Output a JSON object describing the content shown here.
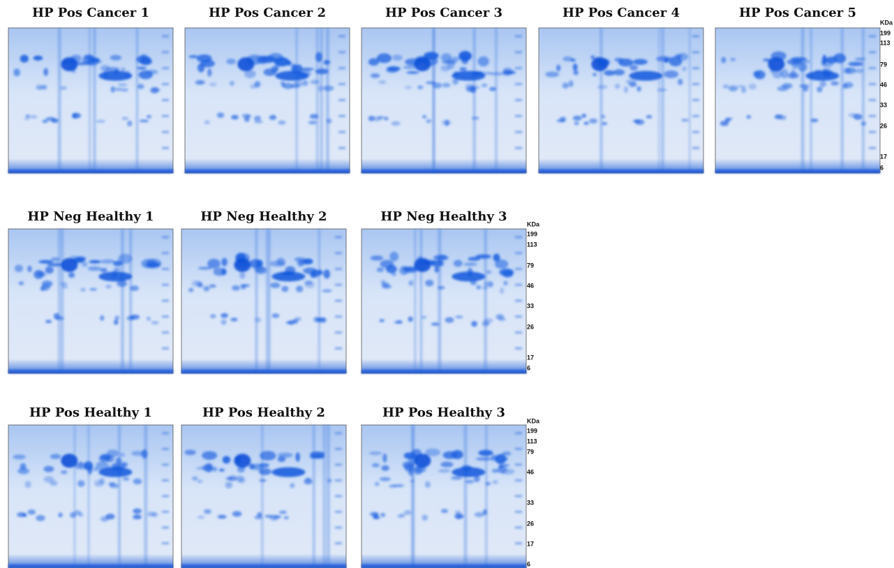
{
  "rows": [
    {
      "panels": [
        "HP Pos Cancer 1",
        "HP Pos Cancer 2",
        "HP Pos Cancer 3",
        "HP Pos Cancer 4",
        "HP Pos Cancer 5"
      ],
      "markers": {
        "unit": "KDa",
        "labels": [
          "199",
          "113",
          "79",
          "46",
          "33",
          "26",
          "17",
          "6"
        ]
      }
    },
    {
      "panels": [
        "HP Neg Healthy 1",
        "HP Neg Healthy 2",
        "HP Neg Healthy 3"
      ],
      "markers": {
        "unit": "KDa",
        "labels": [
          "199",
          "113",
          "79",
          "46",
          "33",
          "26",
          "17",
          "6"
        ]
      }
    },
    {
      "panels": [
        "HP Pos Healthy 1",
        "HP Pos Healthy 2",
        "HP Pos Healthy 3"
      ],
      "markers": {
        "unit": "KDa",
        "labels": [
          "199",
          "113",
          "79",
          "46",
          "33",
          "26",
          "17",
          "6"
        ]
      }
    }
  ]
}
